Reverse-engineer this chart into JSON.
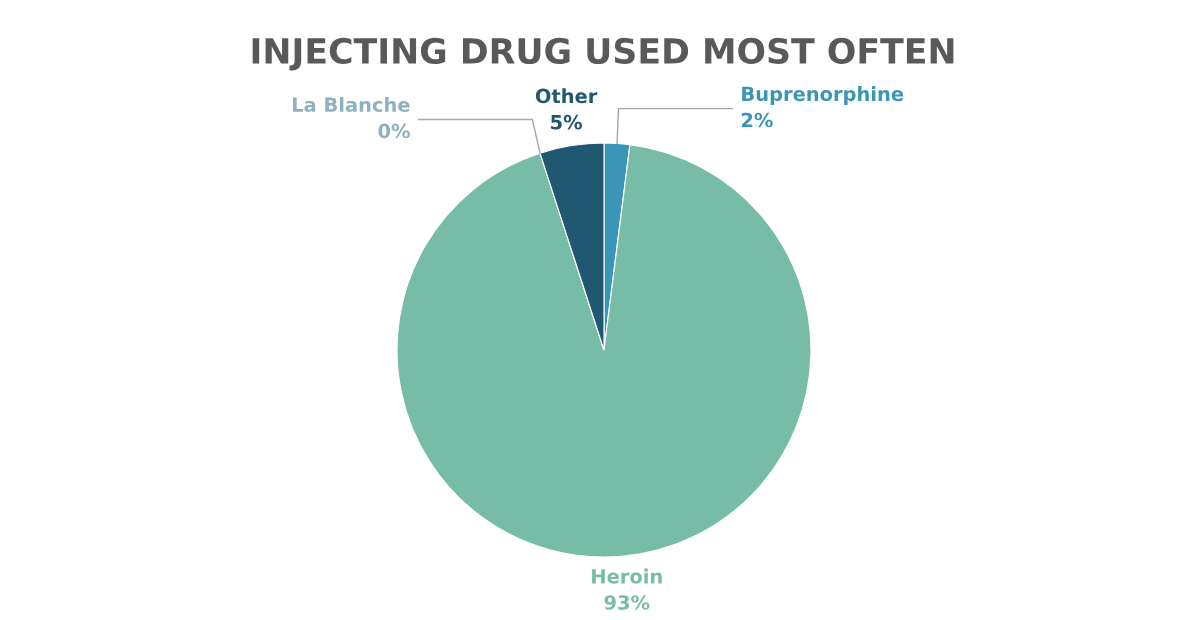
{
  "chart_data": {
    "type": "pie",
    "title": "INJECTING DRUG USED MOST OFTEN",
    "categories": [
      "Buprenorphine",
      "Heroin",
      "La Blanche",
      "Other"
    ],
    "values": [
      2,
      93,
      0,
      5
    ],
    "value_labels": [
      "2%",
      "93%",
      "0%",
      "5%"
    ],
    "colors": [
      "#3a95b8",
      "#76bca7",
      "#8fb0c0",
      "#1f5870"
    ]
  }
}
